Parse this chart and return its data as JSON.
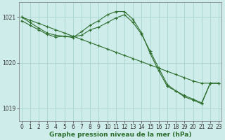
{
  "background_color": "#ceecea",
  "grid_color": "#aad4d0",
  "line_color": "#2d6e2d",
  "ylabel_values": [
    1019,
    1020,
    1021
  ],
  "xlabel_values": [
    0,
    1,
    2,
    3,
    4,
    5,
    6,
    7,
    8,
    9,
    10,
    11,
    12,
    13,
    14,
    15,
    16,
    17,
    18,
    19,
    20,
    21,
    22,
    23
  ],
  "xlabel": "Graphe pression niveau de la mer (hPa)",
  "series1": {
    "x": [
      0,
      1,
      2,
      3,
      4,
      5,
      6,
      7,
      8,
      9,
      10,
      11,
      12,
      13,
      14,
      15,
      16,
      17,
      18,
      19,
      20,
      21,
      22,
      23
    ],
    "y": [
      1021.0,
      1020.93,
      1020.86,
      1020.79,
      1020.72,
      1020.65,
      1020.58,
      1020.51,
      1020.44,
      1020.37,
      1020.3,
      1020.23,
      1020.16,
      1020.09,
      1020.02,
      1019.95,
      1019.88,
      1019.81,
      1019.74,
      1019.67,
      1019.6,
      1019.55,
      1019.55,
      1019.55
    ]
  },
  "series2": {
    "x": [
      0,
      1,
      2,
      3,
      4,
      5,
      6,
      7,
      8,
      9,
      10,
      11,
      12,
      13,
      14,
      15,
      16,
      17,
      18,
      19,
      20,
      21,
      22,
      23
    ],
    "y": [
      1020.92,
      1020.82,
      1020.72,
      1020.62,
      1020.56,
      1020.58,
      1020.55,
      1020.68,
      1020.82,
      1020.92,
      1021.05,
      1021.12,
      1021.12,
      1020.95,
      1020.65,
      1020.2,
      1019.82,
      1019.48,
      1019.38,
      1019.25,
      1019.18,
      1019.1,
      1019.55,
      1019.55
    ]
  },
  "series3": {
    "x": [
      0,
      1,
      2,
      3,
      4,
      5,
      6,
      7,
      8,
      9,
      10,
      11,
      12,
      13,
      14,
      15,
      16,
      17,
      18,
      19,
      20,
      21,
      22,
      23
    ],
    "y": [
      1021.0,
      1020.88,
      1020.76,
      1020.65,
      1020.6,
      1020.58,
      1020.57,
      1020.6,
      1020.72,
      1020.78,
      1020.88,
      1020.98,
      1021.05,
      1020.88,
      1020.62,
      1020.25,
      1019.88,
      1019.52,
      1019.38,
      1019.28,
      1019.2,
      1019.12,
      1019.55,
      1019.55
    ]
  },
  "ylim": [
    1018.72,
    1021.32
  ],
  "xlim": [
    -0.3,
    23.3
  ],
  "label_fontsize": 6.5,
  "tick_fontsize": 5.5
}
